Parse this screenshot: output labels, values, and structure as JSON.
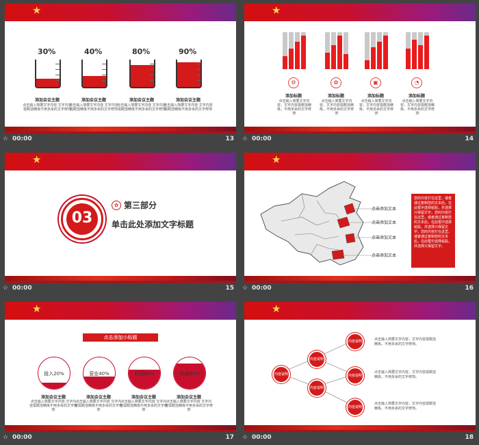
{
  "slides": [
    {
      "number": "13",
      "time": "00:00",
      "beakers": [
        {
          "pct": "30%",
          "level": 0.3,
          "title": "添加会议主题",
          "desc": "点击输入简要文字内容 文字内容需概括精炼不用多余的文字修饰"
        },
        {
          "pct": "40%",
          "level": 0.4,
          "title": "添加会议主题",
          "desc": "点击输入简要文字内容 文字内容需概括精炼不用多余的文字修饰"
        },
        {
          "pct": "80%",
          "level": 0.8,
          "title": "添加会议主题",
          "desc": "点击输入简要文字内容 文字内容需概括精炼不用多余的文字修饰"
        },
        {
          "pct": "90%",
          "level": 0.9,
          "title": "添加会议主题",
          "desc": "点击输入简要文字内容 文字内容需概括精炼不用多余的文字修饰"
        }
      ]
    },
    {
      "number": "14",
      "time": "00:00",
      "groups": [
        {
          "label": "添加标题",
          "icon": "⚙",
          "desc": "点击输入简要文字内容，文字内容需概括精炼，不用多余的文字修饰",
          "bars": [
            0.35,
            0.55,
            0.75,
            0.9
          ]
        },
        {
          "label": "添加标题",
          "icon": "✿",
          "desc": "点击输入简要文字内容，文字内容需概括精炼，不用多余的文字修饰",
          "bars": [
            0.45,
            0.65,
            0.9,
            0.4
          ]
        },
        {
          "label": "添加标题",
          "icon": "▣",
          "desc": "点击输入简要文字内容，文字内容需概括精炼，不用多余的文字修饰",
          "bars": [
            0.25,
            0.6,
            0.75,
            0.9
          ]
        },
        {
          "label": "添加标题",
          "icon": "◔",
          "desc": "点击输入简要文字内容，文字内容需概括精炼，不用多余的文字修饰",
          "bars": [
            0.55,
            0.8,
            0.65,
            0.9
          ]
        }
      ]
    },
    {
      "number": "15",
      "time": "00:00",
      "section_no": "03",
      "section_name": "第三部分",
      "section_title": "单击此处添加文字标题"
    },
    {
      "number": "16",
      "time": "00:00",
      "callouts": [
        "点击添加文本",
        "点击添加文本",
        "点击添加文本",
        "点击添加文本"
      ],
      "panel_text": "您的内容打在这里，或者通过复制您的文本后，在此框中选择粘贴，并选择只保留文字。您的内容打在这里，或者通过复制您的文本后，在此框中选择粘贴，并选择只保留文字。您的内容打在这里，或者通过复制您的文本后，在此框中选择粘贴，并选择只保留文字。"
    },
    {
      "number": "17",
      "time": "00:00",
      "subtitle": "点击添加小标题",
      "pies": [
        {
          "label": "投入20%",
          "level": 0.2,
          "title": "添加会议主题",
          "desc": "点击输入简要文字内容 文字内容需概括精炼不用多余的文字修饰"
        },
        {
          "label": "营业40%",
          "level": 0.4,
          "title": "添加会议主题",
          "desc": "点击输入简要文字内容 文字内容需概括精炼不用多余的文字修饰"
        },
        {
          "label": "利润60%",
          "level": 0.6,
          "title": "添加会议主题",
          "desc": "点击输入简要文字内容 文字内容需概括精炼不用多余的文字修饰"
        },
        {
          "label": "完成80%",
          "level": 0.8,
          "title": "添加会议主题",
          "desc": "点击输入简要文字内容 文字内容需概括精炼不用多余的文字修饰"
        }
      ]
    },
    {
      "number": "18",
      "time": "00:00",
      "nodes": [
        "内容说明",
        "内容说明",
        "内容说明",
        "内容说明",
        "内容说明",
        "内容说明"
      ],
      "texts": [
        "点击输入简要文字内容，文字内容需概括精炼，不用多余的文字修饰。",
        "点击输入简要文字内容，文字内容需概括精炼，不用多余的文字修饰。",
        "点击输入简要文字内容，文字内容需概括精炼，不用多余的文字修饰。"
      ]
    }
  ],
  "colors": {
    "accent": "#d41a1a",
    "banner_purple": "#8a2a8a",
    "background": "#434343"
  }
}
